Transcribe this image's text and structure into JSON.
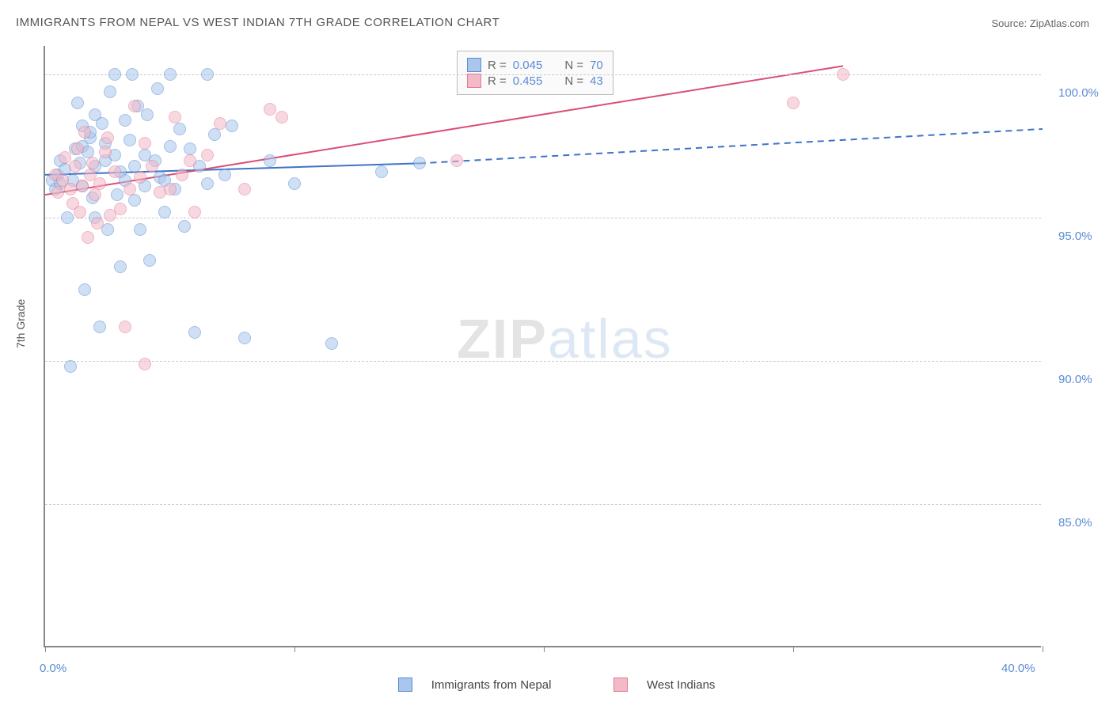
{
  "title": "IMMIGRANTS FROM NEPAL VS WEST INDIAN 7TH GRADE CORRELATION CHART",
  "source_label": "Source: ",
  "source_name": "ZipAtlas.com",
  "ylabel": "7th Grade",
  "watermark_a": "ZIP",
  "watermark_b": "atlas",
  "chart": {
    "type": "scatter",
    "xlim": [
      0,
      40
    ],
    "ylim": [
      80,
      101
    ],
    "ytick_values": [
      85.0,
      90.0,
      95.0,
      100.0
    ],
    "ytick_labels": [
      "85.0%",
      "90.0%",
      "95.0%",
      "100.0%"
    ],
    "xtick_values": [
      0,
      10,
      20,
      30,
      40
    ],
    "xtick_major_labels": {
      "0": "0.0%",
      "40": "40.0%"
    },
    "grid_color": "#cccccc",
    "axis_color": "#888888",
    "background_color": "#ffffff",
    "label_color": "#5b8bd4",
    "marker_radius": 8,
    "marker_opacity": 0.55,
    "series": [
      {
        "id": "nepal",
        "label": "Immigrants from Nepal",
        "fill": "#a9c7ec",
        "stroke": "#5b8bd4",
        "R": 0.045,
        "N": 70,
        "trend": {
          "x1": 0,
          "y1": 96.5,
          "x2_solid": 15,
          "y2_solid": 96.9,
          "x2_dash": 40,
          "y2_dash": 98.1,
          "line_color": "#3f73c6",
          "line_width": 2
        },
        "points": [
          [
            0.3,
            96.3
          ],
          [
            0.4,
            96.0
          ],
          [
            0.5,
            96.5
          ],
          [
            0.6,
            97.0
          ],
          [
            0.6,
            96.2
          ],
          [
            0.8,
            96.7
          ],
          [
            0.9,
            95.0
          ],
          [
            1.0,
            89.8
          ],
          [
            1.1,
            96.3
          ],
          [
            1.2,
            97.4
          ],
          [
            1.3,
            99.0
          ],
          [
            1.4,
            96.9
          ],
          [
            1.5,
            98.2
          ],
          [
            1.5,
            96.1
          ],
          [
            1.5,
            97.5
          ],
          [
            1.6,
            92.5
          ],
          [
            1.7,
            97.3
          ],
          [
            1.8,
            97.8
          ],
          [
            1.8,
            98.0
          ],
          [
            1.9,
            95.7
          ],
          [
            2.0,
            95.0
          ],
          [
            2.0,
            98.6
          ],
          [
            2.0,
            96.8
          ],
          [
            2.2,
            91.2
          ],
          [
            2.3,
            98.3
          ],
          [
            2.4,
            97.0
          ],
          [
            2.4,
            97.6
          ],
          [
            2.5,
            94.6
          ],
          [
            2.6,
            99.4
          ],
          [
            2.8,
            97.2
          ],
          [
            2.8,
            100.0
          ],
          [
            2.9,
            95.8
          ],
          [
            3.0,
            93.3
          ],
          [
            3.0,
            96.6
          ],
          [
            3.2,
            98.4
          ],
          [
            3.2,
            96.3
          ],
          [
            3.4,
            97.7
          ],
          [
            3.5,
            100.0
          ],
          [
            3.6,
            95.6
          ],
          [
            3.6,
            96.8
          ],
          [
            3.7,
            98.9
          ],
          [
            3.8,
            94.6
          ],
          [
            4.0,
            97.2
          ],
          [
            4.0,
            96.1
          ],
          [
            4.1,
            98.6
          ],
          [
            4.2,
            93.5
          ],
          [
            4.4,
            97.0
          ],
          [
            4.5,
            99.5
          ],
          [
            4.6,
            96.4
          ],
          [
            4.8,
            95.2
          ],
          [
            4.8,
            96.3
          ],
          [
            5.0,
            97.5
          ],
          [
            5.0,
            100.0
          ],
          [
            5.2,
            96.0
          ],
          [
            5.4,
            98.1
          ],
          [
            5.6,
            94.7
          ],
          [
            5.8,
            97.4
          ],
          [
            6.0,
            91.0
          ],
          [
            6.2,
            96.8
          ],
          [
            6.5,
            96.2
          ],
          [
            6.5,
            100.0
          ],
          [
            6.8,
            97.9
          ],
          [
            7.2,
            96.5
          ],
          [
            7.5,
            98.2
          ],
          [
            8.0,
            90.8
          ],
          [
            9.0,
            97.0
          ],
          [
            10.0,
            96.2
          ],
          [
            11.5,
            90.6
          ],
          [
            13.5,
            96.6
          ],
          [
            15.0,
            96.9
          ]
        ]
      },
      {
        "id": "westindian",
        "label": "West Indians",
        "fill": "#f3b9c7",
        "stroke": "#e27a95",
        "R": 0.455,
        "N": 43,
        "trend": {
          "x1": 0,
          "y1": 95.8,
          "x2_solid": 32,
          "y2_solid": 100.3,
          "line_color": "#d94f74",
          "line_width": 2
        },
        "points": [
          [
            0.4,
            96.5
          ],
          [
            0.5,
            95.9
          ],
          [
            0.7,
            96.3
          ],
          [
            0.8,
            97.1
          ],
          [
            1.0,
            96.0
          ],
          [
            1.1,
            95.5
          ],
          [
            1.2,
            96.8
          ],
          [
            1.3,
            97.4
          ],
          [
            1.4,
            95.2
          ],
          [
            1.5,
            96.1
          ],
          [
            1.6,
            98.0
          ],
          [
            1.7,
            94.3
          ],
          [
            1.8,
            96.5
          ],
          [
            1.9,
            96.9
          ],
          [
            2.0,
            95.8
          ],
          [
            2.1,
            94.8
          ],
          [
            2.2,
            96.2
          ],
          [
            2.4,
            97.3
          ],
          [
            2.5,
            97.8
          ],
          [
            2.6,
            95.1
          ],
          [
            2.8,
            96.6
          ],
          [
            3.0,
            95.3
          ],
          [
            3.2,
            91.2
          ],
          [
            3.4,
            96.0
          ],
          [
            3.6,
            98.9
          ],
          [
            3.8,
            96.4
          ],
          [
            4.0,
            97.6
          ],
          [
            4.0,
            89.9
          ],
          [
            4.3,
            96.8
          ],
          [
            4.6,
            95.9
          ],
          [
            5.0,
            96.0
          ],
          [
            5.2,
            98.5
          ],
          [
            5.5,
            96.5
          ],
          [
            5.8,
            97.0
          ],
          [
            6.0,
            95.2
          ],
          [
            6.5,
            97.2
          ],
          [
            7.0,
            98.3
          ],
          [
            8.0,
            96.0
          ],
          [
            9.0,
            98.8
          ],
          [
            9.5,
            98.5
          ],
          [
            16.5,
            97.0
          ],
          [
            30.0,
            99.0
          ],
          [
            32.0,
            100.0
          ]
        ]
      }
    ]
  },
  "legend_top": {
    "R_label": "R =",
    "N_label": "N ="
  }
}
